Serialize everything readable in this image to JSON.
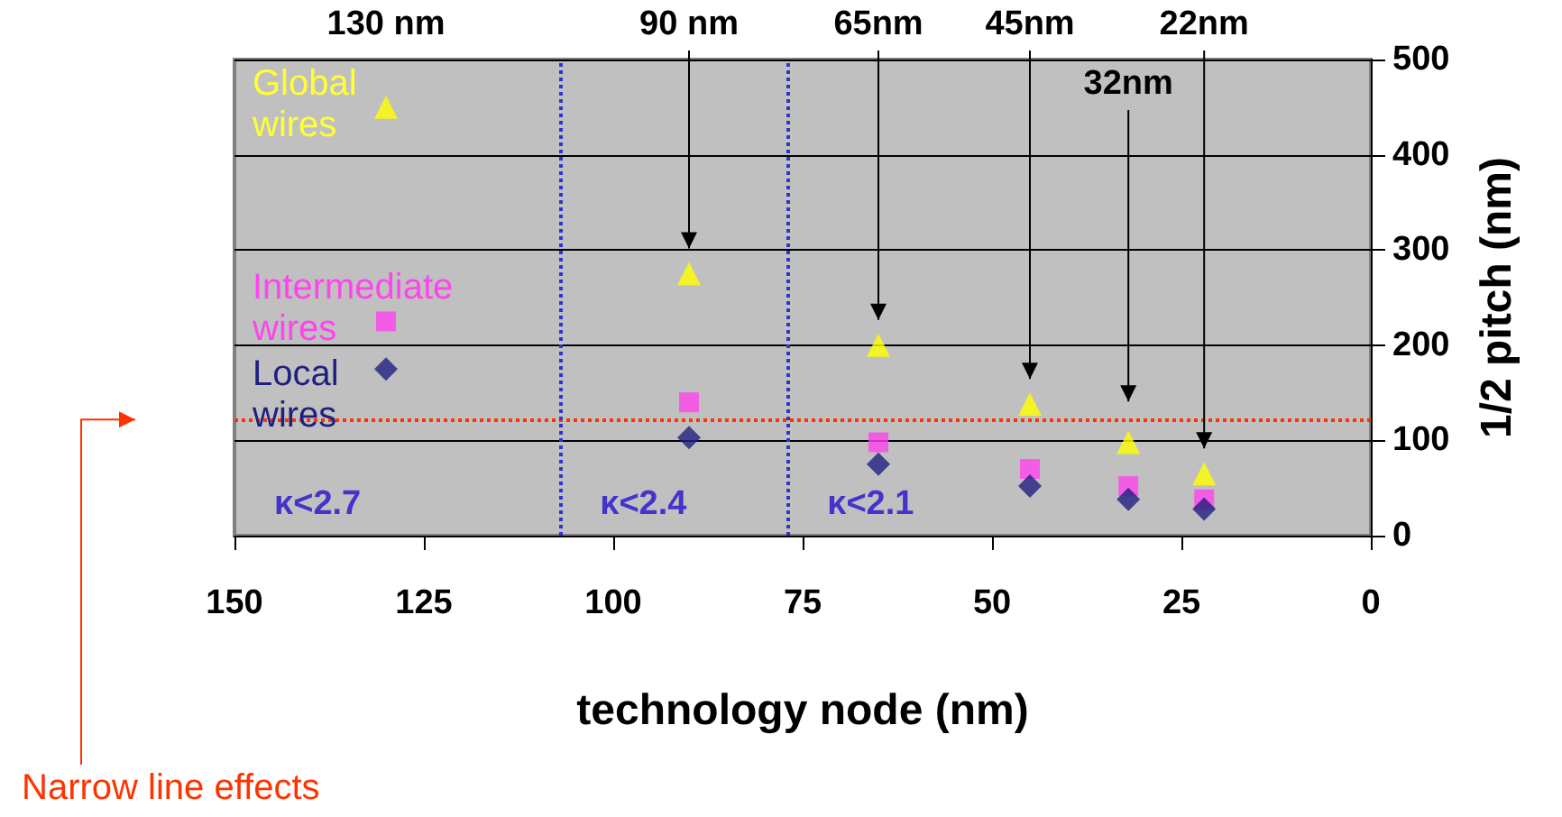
{
  "chart_data": {
    "type": "scatter",
    "xlabel": "technology node (nm)",
    "ylabel": "1/2 pitch (nm)",
    "xlim": [
      150,
      0
    ],
    "xticks": [
      150,
      125,
      100,
      75,
      50,
      25,
      0
    ],
    "ylim": [
      0,
      500
    ],
    "yticks": [
      0,
      100,
      200,
      300,
      400,
      500
    ],
    "grid": "y",
    "legend": false,
    "series": [
      {
        "name": "Global wires",
        "color": "#ffff00",
        "marker": "triangle",
        "x": [
          130,
          90,
          65,
          45,
          32,
          22
        ],
        "values": [
          450,
          275,
          200,
          138,
          98,
          65
        ]
      },
      {
        "name": "Intermediate wires",
        "color": "#ff44ee",
        "marker": "square",
        "x": [
          130,
          90,
          65,
          45,
          32,
          22
        ],
        "values": [
          225,
          140,
          98,
          70,
          52,
          38
        ]
      },
      {
        "name": "Local wires",
        "color": "#1f1f80",
        "marker": "diamond",
        "x": [
          130,
          90,
          65,
          45,
          32,
          22
        ],
        "values": [
          175,
          103,
          75,
          52,
          38,
          28
        ]
      }
    ],
    "ref_lines": [
      {
        "axis": "y",
        "value": 122,
        "label": "Narrow line effects",
        "color": "#ff3300",
        "line_style": "dotted"
      },
      {
        "axis": "x",
        "value": 107,
        "label": null,
        "color": "#3333cc",
        "line_style": "dotted"
      },
      {
        "axis": "x",
        "value": 77,
        "label": null,
        "color": "#3333cc",
        "line_style": "dotted"
      }
    ],
    "annotations": [
      "130 nm",
      "90 nm",
      "65nm",
      "45nm",
      "32nm",
      "22nm",
      "κ<2.7",
      "κ<2.4",
      "κ<2.1"
    ]
  }
}
